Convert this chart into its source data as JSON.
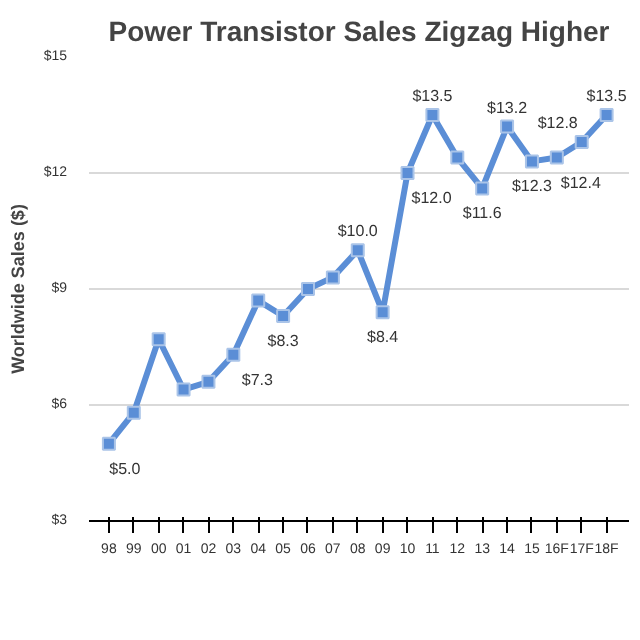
{
  "chart_data": {
    "type": "line",
    "title": "Power Transistor Sales Zigzag Higher",
    "ylabel": "Worldwide Sales ($)",
    "categories": [
      "98",
      "99",
      "00",
      "01",
      "02",
      "03",
      "04",
      "05",
      "06",
      "07",
      "08",
      "09",
      "10",
      "11",
      "12",
      "13",
      "14",
      "15",
      "16F",
      "17F",
      "18F"
    ],
    "series": [
      {
        "color": "#5b8ed6",
        "values": [
          5.0,
          5.8,
          7.7,
          6.4,
          6.6,
          7.3,
          8.7,
          8.3,
          9.0,
          9.3,
          10.0,
          8.4,
          12.0,
          13.5,
          12.4,
          11.6,
          13.2,
          12.3,
          12.4,
          12.8,
          13.5
        ],
        "value_labels": [
          "$5.0",
          null,
          null,
          null,
          null,
          "$7.3",
          null,
          "$8.3",
          null,
          null,
          "$10.0",
          "$8.4",
          "$12.0",
          "$13.5",
          null,
          "$11.6",
          "$13.2",
          "$12.3",
          "$12.4",
          "$12.8",
          "$13.5"
        ]
      }
    ],
    "ylim": [
      3,
      15
    ],
    "yticks": [
      {
        "value": 3,
        "label": "$3"
      },
      {
        "value": 6,
        "label": "$6"
      },
      {
        "value": 9,
        "label": "$9"
      },
      {
        "value": 12,
        "label": "$12"
      },
      {
        "value": 15,
        "label": "$15"
      }
    ],
    "grid": "y",
    "marker": "square",
    "line_style": "solid"
  }
}
